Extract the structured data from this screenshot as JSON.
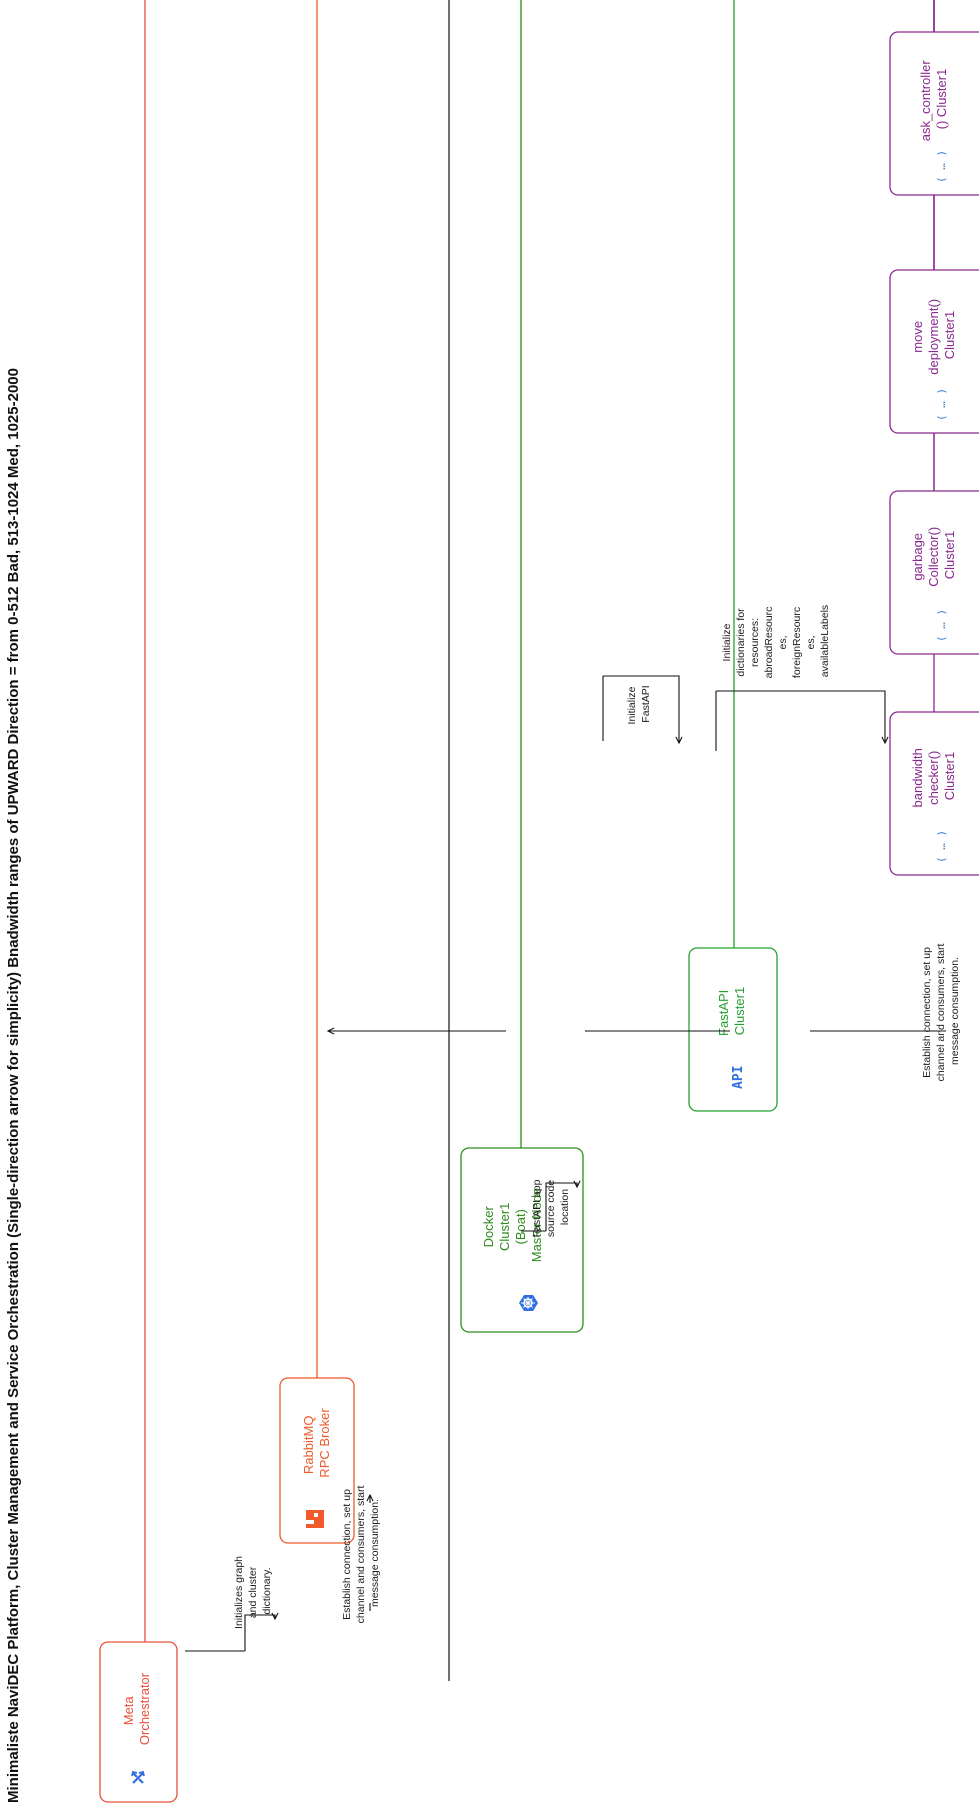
{
  "title": "Minimaliste NaviDEC Platform, Cluster Management and Service Orchestration (Single-direction arrow for simplicity) Bnadwidth ranges of UPWARD Direction = from  0-512 Bad, 513-1024 Med, 1025-2000",
  "colors": {
    "orchestrator": "#e8503a",
    "rabbitmq": "#f0592a",
    "docker": "#2e8b1e",
    "fastapi": "#23a12f",
    "function": "#8a2a8f",
    "separator": "#111111"
  },
  "participants": [
    {
      "id": "meta",
      "icon": "shuffle-icon",
      "lines": [
        "Meta",
        "Orchestrator"
      ]
    },
    {
      "id": "rabbitmq",
      "icon": "rabbitmq-icon",
      "lines": [
        "RabbitMQ",
        "RPC Broker"
      ]
    },
    {
      "id": "docker",
      "icon": "helm-icon",
      "lines": [
        "Docker",
        "Cluster1",
        "(Boat)",
        "Master Node"
      ]
    },
    {
      "id": "fastapi",
      "icon": "api-icon",
      "icon_text": "API",
      "lines": [
        "FastAPI",
        "Cluster1"
      ]
    },
    {
      "id": "bandwidth",
      "icon": "function-icon",
      "icon_text": "( … )",
      "lines": [
        "bandwidth",
        "checker()",
        "Cluster1"
      ]
    },
    {
      "id": "garbage",
      "icon": "function-icon",
      "icon_text": "( … )",
      "lines": [
        "garbage",
        "Collector()",
        "Cluster1"
      ]
    },
    {
      "id": "move",
      "icon": "function-icon",
      "icon_text": "( … )",
      "lines": [
        "move",
        "deployment()",
        "Cluster1"
      ]
    },
    {
      "id": "ask",
      "icon": "function-icon",
      "icon_text": "( … )",
      "lines": [
        "ask_controller",
        "() Cluster1"
      ]
    }
  ],
  "notes": {
    "init_graph": [
      "Initializes graph",
      "and cluster",
      "dictionary."
    ],
    "establish_1": [
      "Establish connection, set up",
      "channel and consumers, start",
      "message consumption."
    ],
    "fastapi_source": [
      "FastAPI app",
      "source code",
      "location"
    ],
    "init_fastapi": [
      "Initialize",
      "FastAPI"
    ],
    "init_dicts": [
      "Initialize",
      "dictionaries for",
      "resources:",
      "abroadResourc",
      "es,",
      "foreignResourc",
      "es,",
      "availableLabels"
    ],
    "establish_2": [
      "Establish connection, set up",
      "channel and consumers, start",
      "message consumption."
    ]
  }
}
